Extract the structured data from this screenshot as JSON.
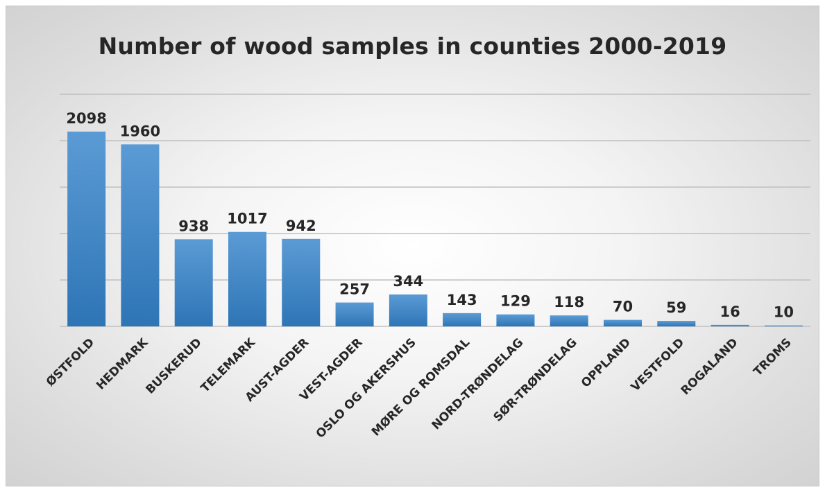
{
  "chart_data": {
    "type": "bar",
    "title": "Number of wood samples in counties 2000-2019",
    "xlabel": "",
    "ylabel": "",
    "ylim": [
      0,
      2500
    ],
    "grid": true,
    "categories": [
      "ØSTFOLD",
      "HEDMARK",
      "BUSKERUD",
      "TELEMARK",
      "AUST-AGDER",
      "VEST-AGDER",
      "OSLO OG AKERSHUS",
      "MØRE OG ROMSDAL",
      "NORD-TRØNDELAG",
      "SØR-TRØNDELAG",
      "OPPLAND",
      "VESTFOLD",
      "ROGALAND",
      "TROMS"
    ],
    "values": [
      2098,
      1960,
      938,
      1017,
      942,
      257,
      344,
      143,
      129,
      118,
      70,
      59,
      16,
      10
    ],
    "data_labels": [
      "2098",
      "1960",
      "938",
      "1017",
      "942",
      "257",
      "344",
      "143",
      "129",
      "118",
      "70",
      "59",
      "16",
      "10"
    ],
    "colors": {
      "bar_top": "#5b9bd5",
      "bar_bottom": "#2e75b6",
      "grid": "#bfbfbf",
      "text": "#262626"
    }
  }
}
